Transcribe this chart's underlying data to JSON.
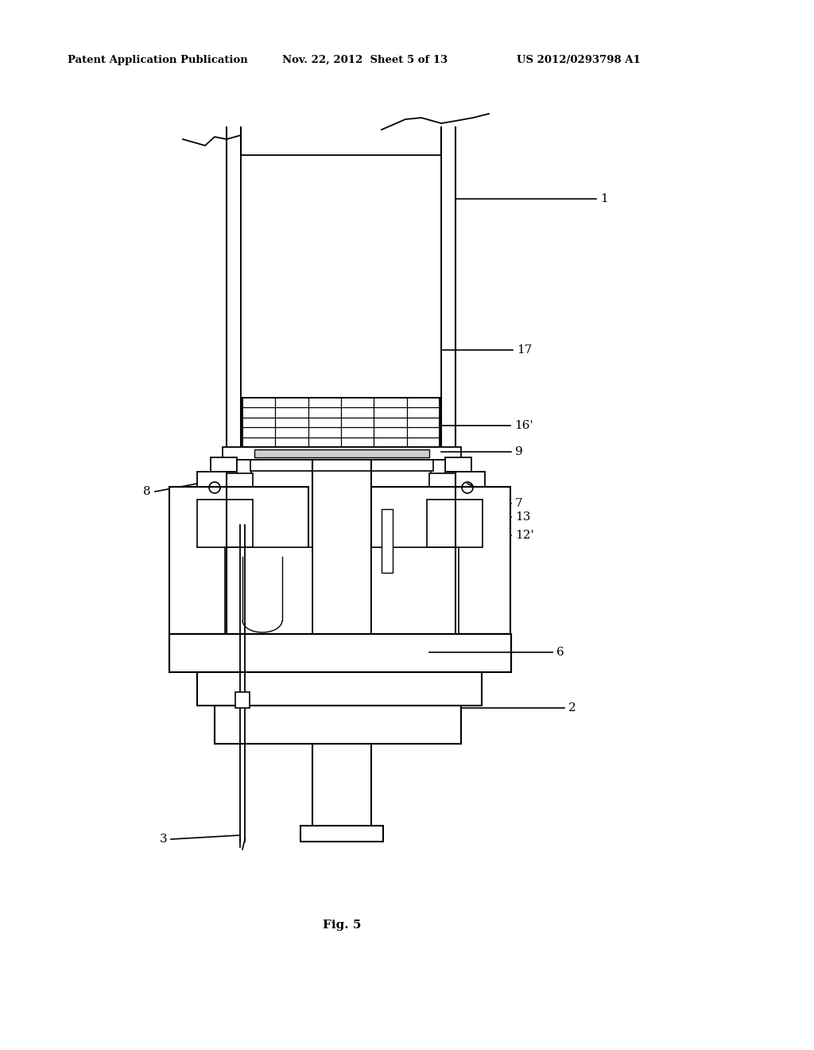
{
  "bg_color": "#ffffff",
  "line_color": "#000000",
  "header_left": "Patent Application Publication",
  "header_mid": "Nov. 22, 2012  Sheet 5 of 13",
  "header_right": "US 2012/0293798 A1",
  "fig_label": "Fig. 5"
}
